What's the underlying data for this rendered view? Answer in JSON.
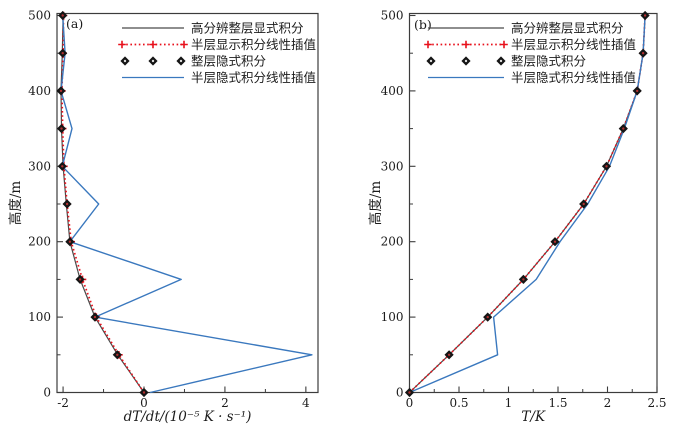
{
  "figure": {
    "background": "#ffffff",
    "frame_color": "#3c3c3c",
    "text_color": "#1b1b1b"
  },
  "chart_data": [
    {
      "type": "line",
      "panel_label": "(a)",
      "xlabel": "dT/dt/(10⁻⁵ K · s⁻¹)",
      "ylabel": "高度/m",
      "xlim": [
        -2.15,
        4.3
      ],
      "ylim": [
        0,
        500
      ],
      "x_major_ticks": [
        -2,
        0,
        2,
        4
      ],
      "x_minor_ticks": [
        -1,
        1,
        3
      ],
      "y_major_ticks": [
        0,
        100,
        200,
        300,
        400,
        500
      ],
      "y_minor_ticks": [
        50,
        150,
        250,
        350,
        450
      ],
      "grid": false,
      "legend_position": "top-inside",
      "heights_m": [
        0,
        50,
        100,
        150,
        200,
        250,
        300,
        350,
        400,
        450,
        500
      ],
      "series": [
        {
          "name": "高分辨整层显式积分",
          "color": "#4a4a4a",
          "line": "solid",
          "marker": "none",
          "values": [
            0.0,
            -0.65,
            -1.21,
            -1.58,
            -1.83,
            -1.92,
            -2.0,
            -2.04,
            -2.05,
            -2.02,
            -2.0
          ]
        },
        {
          "name": "半层显示积分线性插值",
          "color": "#e8111c",
          "line": "dotted",
          "marker": "plus",
          "values": [
            0.0,
            -0.62,
            -1.18,
            -1.52,
            -1.8,
            -1.9,
            -1.98,
            -2.01,
            -2.03,
            -2.0,
            -1.99
          ]
        },
        {
          "name": "整层隐式积分",
          "color": "#151515",
          "line": "none",
          "marker": "diamond",
          "values": [
            0.0,
            -0.66,
            -1.21,
            -1.58,
            -1.83,
            -1.9,
            -2.02,
            -2.04,
            -2.05,
            -2.01,
            -2.01
          ]
        },
        {
          "name": "半层隐式积分线性插值",
          "color": "#3a78be",
          "line": "solid",
          "marker": "none",
          "values": [
            0.15,
            4.15,
            -1.21,
            0.92,
            -1.83,
            -1.12,
            -2.02,
            -1.78,
            -2.05,
            -1.95,
            -2.01
          ]
        }
      ]
    },
    {
      "type": "line",
      "panel_label": "(b)",
      "xlabel": "T/K",
      "ylabel": "高度/m",
      "xlim": [
        0,
        2.5
      ],
      "ylim": [
        0,
        500
      ],
      "x_major_ticks": [
        0,
        0.5,
        1,
        1.5,
        2,
        2.5
      ],
      "x_minor_ticks": [
        0.25,
        0.75,
        1.25,
        1.75,
        2.25
      ],
      "y_major_ticks": [
        0,
        100,
        200,
        300,
        400,
        500
      ],
      "y_minor_ticks": [
        50,
        150,
        250,
        350,
        450
      ],
      "grid": false,
      "legend_position": "top-inside",
      "heights_m": [
        0,
        50,
        100,
        150,
        200,
        250,
        300,
        350,
        400,
        450,
        500
      ],
      "series": [
        {
          "name": "高分辨整层显式积分",
          "color": "#4a4a4a",
          "line": "solid",
          "marker": "none",
          "values": [
            0.0,
            0.4,
            0.79,
            1.15,
            1.47,
            1.76,
            1.99,
            2.16,
            2.3,
            2.36,
            2.38
          ]
        },
        {
          "name": "半层显示积分线性插值",
          "color": "#e8111c",
          "line": "dotted",
          "marker": "plus",
          "values": [
            0.0,
            0.4,
            0.79,
            1.15,
            1.47,
            1.76,
            1.99,
            2.16,
            2.3,
            2.36,
            2.38
          ]
        },
        {
          "name": "整层隐式积分",
          "color": "#151515",
          "line": "none",
          "marker": "diamond",
          "values": [
            0.0,
            0.4,
            0.79,
            1.15,
            1.47,
            1.76,
            1.99,
            2.16,
            2.3,
            2.36,
            2.38
          ]
        },
        {
          "name": "半层隐式积分线性插值",
          "color": "#3a78be",
          "line": "solid",
          "marker": "none",
          "values": [
            0.0,
            0.89,
            0.85,
            1.28,
            1.52,
            1.8,
            2.02,
            2.17,
            2.3,
            2.36,
            2.38
          ]
        }
      ]
    }
  ]
}
